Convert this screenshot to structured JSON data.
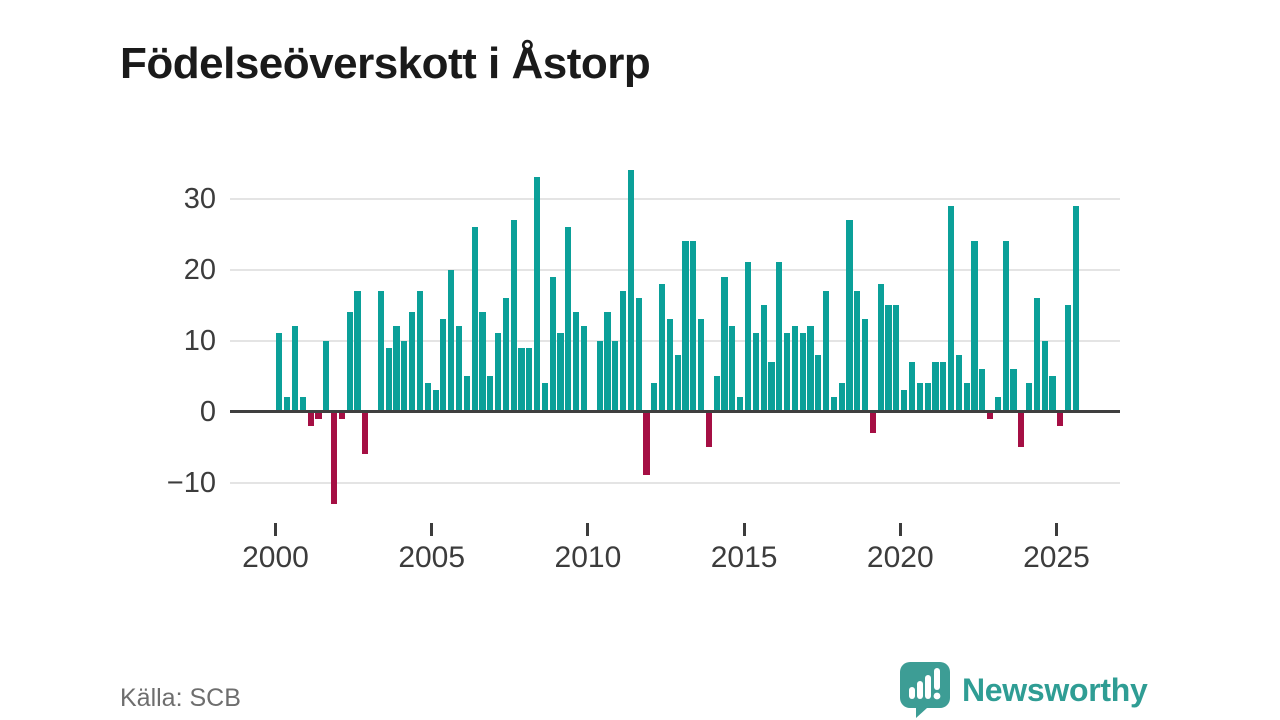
{
  "header": {
    "title": "Födelseöverskott i Åstorp"
  },
  "footer": {
    "source": "Källa: SCB"
  },
  "brand": {
    "name": "Newsworthy",
    "color": "#2f9d94",
    "icon": "speech-bubble-bar-chart-exclamation"
  },
  "chart_data": {
    "type": "bar",
    "title": "Födelseöverskott i Åstorp",
    "source": "Källa: SCB",
    "x_unit": "quarter",
    "frequency": "quarterly",
    "x_range": "2000 Q1 – 2025 Q3",
    "series": [
      {
        "year": 2000,
        "quarters": [
          11,
          2,
          12,
          2
        ]
      },
      {
        "year": 2001,
        "quarters": [
          -2,
          -1,
          10,
          -13
        ]
      },
      {
        "year": 2002,
        "quarters": [
          -1,
          14,
          17,
          -6
        ]
      },
      {
        "year": 2003,
        "quarters": [
          0,
          17,
          9,
          12
        ]
      },
      {
        "year": 2004,
        "quarters": [
          10,
          14,
          17,
          4
        ]
      },
      {
        "year": 2005,
        "quarters": [
          3,
          13,
          20,
          12
        ]
      },
      {
        "year": 2006,
        "quarters": [
          5,
          26,
          14,
          5
        ]
      },
      {
        "year": 2007,
        "quarters": [
          11,
          16,
          27,
          9
        ]
      },
      {
        "year": 2008,
        "quarters": [
          9,
          33,
          4,
          19
        ]
      },
      {
        "year": 2009,
        "quarters": [
          11,
          26,
          14,
          12
        ]
      },
      {
        "year": 2010,
        "quarters": [
          0,
          10,
          14,
          10
        ]
      },
      {
        "year": 2011,
        "quarters": [
          17,
          34,
          16,
          -9
        ]
      },
      {
        "year": 2012,
        "quarters": [
          4,
          18,
          13,
          8
        ]
      },
      {
        "year": 2013,
        "quarters": [
          24,
          24,
          13,
          -5
        ]
      },
      {
        "year": 2014,
        "quarters": [
          5,
          19,
          12,
          2
        ]
      },
      {
        "year": 2015,
        "quarters": [
          21,
          11,
          15,
          7
        ]
      },
      {
        "year": 2016,
        "quarters": [
          21,
          11,
          12,
          11
        ]
      },
      {
        "year": 2017,
        "quarters": [
          12,
          8,
          17,
          2
        ]
      },
      {
        "year": 2018,
        "quarters": [
          4,
          27,
          17,
          13
        ]
      },
      {
        "year": 2019,
        "quarters": [
          -3,
          18,
          15,
          15
        ]
      },
      {
        "year": 2020,
        "quarters": [
          3,
          7,
          4,
          4
        ]
      },
      {
        "year": 2021,
        "quarters": [
          7,
          7,
          29,
          8
        ]
      },
      {
        "year": 2022,
        "quarters": [
          4,
          24,
          6,
          -1
        ]
      },
      {
        "year": 2023,
        "quarters": [
          2,
          24,
          6,
          -5
        ]
      },
      {
        "year": 2024,
        "quarters": [
          4,
          16,
          10,
          5
        ]
      },
      {
        "year": 2025,
        "quarters": [
          -2,
          15,
          29
        ]
      }
    ],
    "yticks": [
      30,
      20,
      10,
      0,
      -10
    ],
    "ytick_labels": [
      "30",
      "20",
      "10",
      "0",
      "−10"
    ],
    "xtick_years": [
      2000,
      2005,
      2010,
      2015,
      2020,
      2025
    ],
    "xtick_labels": [
      "2000",
      "2005",
      "2010",
      "2015",
      "2020",
      "2025"
    ],
    "ylim": [
      -13,
      34
    ],
    "grid": true,
    "legend": "none",
    "colors": {
      "positive": "#0ba099",
      "negative": "#a50f44",
      "axis": "#3f3f3f",
      "grid": "#e4e4e4",
      "tick_label": "#3c3c3c",
      "title": "#1a1a1a",
      "source": "#6e6e6e"
    }
  }
}
